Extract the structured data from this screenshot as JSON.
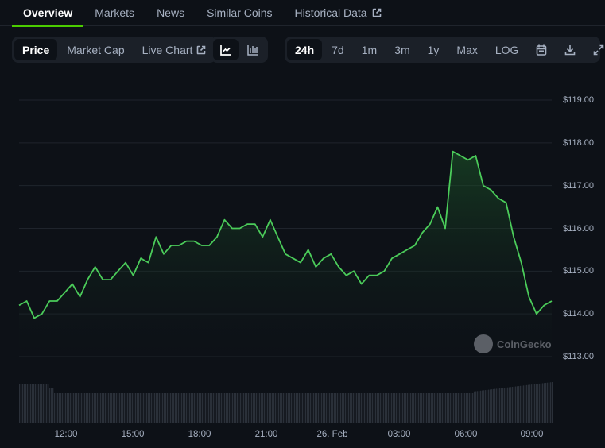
{
  "tabs": [
    {
      "label": "Overview",
      "active": true
    },
    {
      "label": "Markets",
      "active": false
    },
    {
      "label": "News",
      "active": false
    },
    {
      "label": "Similar Coins",
      "active": false
    },
    {
      "label": "Historical Data",
      "active": false,
      "icon": "external-link-icon"
    }
  ],
  "chart_type_toolbar": {
    "items": [
      {
        "label": "Price",
        "active": true
      },
      {
        "label": "Market Cap",
        "active": false
      },
      {
        "label": "Live Chart",
        "active": false,
        "icon": "external-link-icon"
      }
    ]
  },
  "chart_style_toolbar": {
    "items": [
      {
        "icon": "line-chart-icon",
        "active": true
      },
      {
        "icon": "candlestick-chart-icon",
        "active": false
      }
    ]
  },
  "range_toolbar": {
    "items": [
      {
        "label": "24h",
        "active": true
      },
      {
        "label": "7d",
        "active": false
      },
      {
        "label": "1m",
        "active": false
      },
      {
        "label": "3m",
        "active": false
      },
      {
        "label": "1y",
        "active": false
      },
      {
        "label": "Max",
        "active": false
      },
      {
        "label": "LOG",
        "active": false
      }
    ],
    "icons": [
      "calendar-icon",
      "download-icon",
      "fullscreen-icon"
    ]
  },
  "watermark": "CoinGecko",
  "colors": {
    "line": "#4bcc5a",
    "background": "#0d1117",
    "accent": "#4bcc00",
    "grid": "#1f242c",
    "volume": "#2a3039"
  },
  "chart_data": {
    "type": "area",
    "title": "",
    "xlabel": "",
    "ylabel": "",
    "ylim": [
      113,
      119
    ],
    "y_ticks": [
      "$113.00",
      "$114.00",
      "$115.00",
      "$116.00",
      "$117.00",
      "$118.00",
      "$119.00"
    ],
    "x_ticks": [
      "12:00",
      "15:00",
      "18:00",
      "21:00",
      "26. Feb",
      "03:00",
      "06:00",
      "09:00"
    ],
    "grid": true,
    "legend": "none",
    "series": [
      {
        "name": "Price (USD)",
        "x": [
          "10:20",
          "10:40",
          "11:00",
          "11:20",
          "11:40",
          "12:00",
          "12:20",
          "12:40",
          "13:00",
          "13:20",
          "13:40",
          "14:00",
          "14:20",
          "14:40",
          "15:00",
          "15:20",
          "15:40",
          "16:00",
          "16:20",
          "16:40",
          "17:00",
          "17:20",
          "17:40",
          "18:00",
          "18:20",
          "18:40",
          "19:00",
          "19:20",
          "19:40",
          "20:00",
          "20:20",
          "20:40",
          "21:00",
          "21:20",
          "21:40",
          "22:00",
          "22:20",
          "22:40",
          "23:00",
          "23:20",
          "23:40",
          "00:00",
          "00:20",
          "00:40",
          "01:00",
          "01:20",
          "01:40",
          "02:00",
          "02:20",
          "02:40",
          "03:00",
          "03:20",
          "03:40",
          "04:00",
          "04:20",
          "04:40",
          "05:00",
          "05:20",
          "05:40",
          "06:00",
          "06:20",
          "06:40",
          "07:00",
          "07:20",
          "07:40",
          "08:00",
          "08:20",
          "08:40",
          "09:00",
          "09:20",
          "09:40"
        ],
        "values": [
          114.2,
          114.3,
          113.9,
          114.0,
          114.3,
          114.3,
          114.5,
          114.7,
          114.4,
          114.8,
          115.1,
          114.8,
          114.8,
          115.0,
          115.2,
          114.9,
          115.3,
          115.2,
          115.8,
          115.4,
          115.6,
          115.6,
          115.7,
          115.7,
          115.6,
          115.6,
          115.8,
          116.2,
          116.0,
          116.0,
          116.1,
          116.1,
          115.8,
          116.2,
          115.8,
          115.4,
          115.3,
          115.2,
          115.5,
          115.1,
          115.3,
          115.4,
          115.1,
          114.9,
          115.0,
          114.7,
          114.9,
          114.9,
          115.0,
          115.3,
          115.4,
          115.5,
          115.6,
          115.9,
          116.1,
          116.5,
          116.0,
          117.8,
          117.7,
          117.6,
          117.7,
          117.0,
          116.9,
          116.7,
          116.6,
          115.8,
          115.2,
          114.4,
          114.0,
          114.2,
          114.3
        ]
      },
      {
        "name": "Volume",
        "values_relative": "roughly flat, elevated at start (~10:20-11:00) and rising after 06:00"
      }
    ]
  }
}
